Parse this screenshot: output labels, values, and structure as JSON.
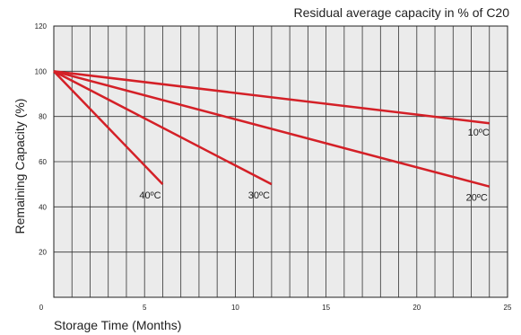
{
  "chart_data": {
    "type": "line",
    "title": "Residual average capacity in % of C20",
    "xlabel": "Storage Time (Months)",
    "ylabel": "Remaining Capacity (%)",
    "xlim": [
      0,
      25
    ],
    "ylim": [
      0,
      120
    ],
    "x_ticks": [
      "0",
      "5",
      "10",
      "15",
      "20",
      "25"
    ],
    "y_ticks": [
      "20",
      "40",
      "60",
      "80",
      "100",
      "120"
    ],
    "grid": true,
    "series": [
      {
        "name": "10ºC",
        "color": "#d42027",
        "x": [
          0,
          24
        ],
        "y": [
          100,
          77
        ]
      },
      {
        "name": "20ºC",
        "color": "#d42027",
        "x": [
          0,
          24
        ],
        "y": [
          100,
          49
        ]
      },
      {
        "name": "30ºC",
        "color": "#d42027",
        "x": [
          0,
          12
        ],
        "y": [
          100,
          50
        ]
      },
      {
        "name": "40ºC",
        "color": "#d42027",
        "x": [
          0,
          6
        ],
        "y": [
          100,
          50
        ]
      }
    ]
  }
}
